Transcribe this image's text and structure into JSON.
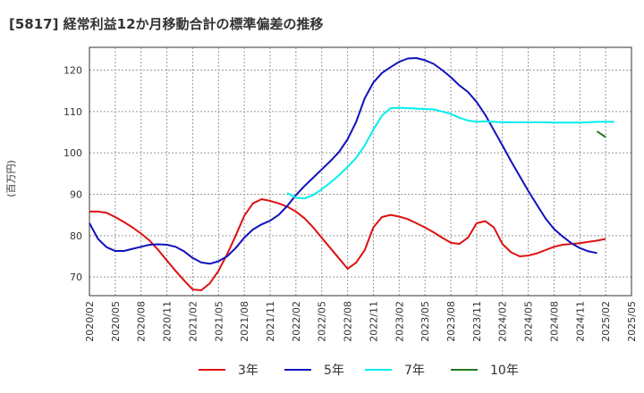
{
  "chart_data": {
    "type": "line",
    "title": "[5817]  経常利益12か月移動合計の標準偏差の推移",
    "ylabel": "(百万円)",
    "xlabel": "",
    "ylim": [
      65.5,
      125.5
    ],
    "yticks": [
      70,
      80,
      90,
      100,
      110,
      120
    ],
    "x_tick_labels": [
      "2020/02",
      "2020/05",
      "2020/08",
      "2020/11",
      "2021/02",
      "2021/05",
      "2021/08",
      "2021/11",
      "2022/02",
      "2022/05",
      "2022/08",
      "2022/11",
      "2023/02",
      "2023/05",
      "2023/08",
      "2023/11",
      "2024/02",
      "2024/05",
      "2024/08",
      "2024/11",
      "2025/02",
      "2025/05"
    ],
    "grid": true,
    "legend_position": "bottom",
    "series": [
      {
        "name": "3年",
        "color": "#dd1111",
        "start": "2020/02",
        "values": [
          85.8,
          85.8,
          85.5,
          84.5,
          83.3,
          82.0,
          80.5,
          78.8,
          76.5,
          74.0,
          71.5,
          69.2,
          67.0,
          66.8,
          68.5,
          71.5,
          75.5,
          80.0,
          84.8,
          87.8,
          88.8,
          88.4,
          87.8,
          87.0,
          85.8,
          84.2,
          82.0,
          79.5,
          77.0,
          74.5,
          72.0,
          73.5,
          76.5,
          82.0,
          84.5,
          85.0,
          84.6,
          84.0,
          83.0,
          82.0,
          80.8,
          79.5,
          78.3,
          78.0,
          79.5,
          83.0,
          83.5,
          82.0,
          78.0,
          76.0,
          75.0,
          75.2,
          75.7,
          76.5,
          77.3,
          77.8,
          78.0,
          78.2,
          78.5,
          78.8,
          79.2
        ]
      },
      {
        "name": "5年",
        "color": "#1111bb",
        "start": "2020/02",
        "values": [
          83.0,
          79.2,
          77.2,
          76.3,
          76.3,
          76.8,
          77.3,
          77.8,
          77.9,
          77.8,
          77.3,
          76.2,
          74.6,
          73.5,
          73.2,
          73.8,
          75.0,
          77.0,
          79.5,
          81.5,
          82.7,
          83.6,
          85.0,
          87.2,
          89.8,
          92.0,
          94.0,
          96.0,
          98.0,
          100.2,
          103.3,
          107.5,
          113.2,
          117.0,
          119.3,
          120.7,
          122.0,
          122.8,
          122.9,
          122.4,
          121.5,
          120.0,
          118.3,
          116.3,
          114.7,
          112.3,
          109.2,
          105.5,
          101.8,
          98.0,
          94.4,
          90.8,
          87.5,
          84.2,
          81.6,
          79.8,
          78.2,
          77.0,
          76.2,
          75.8
        ]
      },
      {
        "name": "7年",
        "color": "#00eeee",
        "start": "2022/01",
        "values": [
          90.3,
          89.2,
          89.0,
          89.8,
          91.2,
          92.8,
          94.6,
          96.6,
          98.8,
          101.8,
          105.6,
          109.0,
          110.8,
          110.9,
          110.8,
          110.7,
          110.6,
          110.5,
          110.0,
          109.4,
          108.5,
          107.8,
          107.5,
          107.6,
          107.5,
          107.4,
          107.4,
          107.4,
          107.4,
          107.4,
          107.4,
          107.3,
          107.3,
          107.3,
          107.3,
          107.4,
          107.5,
          107.5,
          107.5
        ]
      },
      {
        "name": "10年",
        "color": "#227722",
        "start": "2025/01",
        "values": [
          105.2,
          103.8
        ]
      }
    ]
  }
}
